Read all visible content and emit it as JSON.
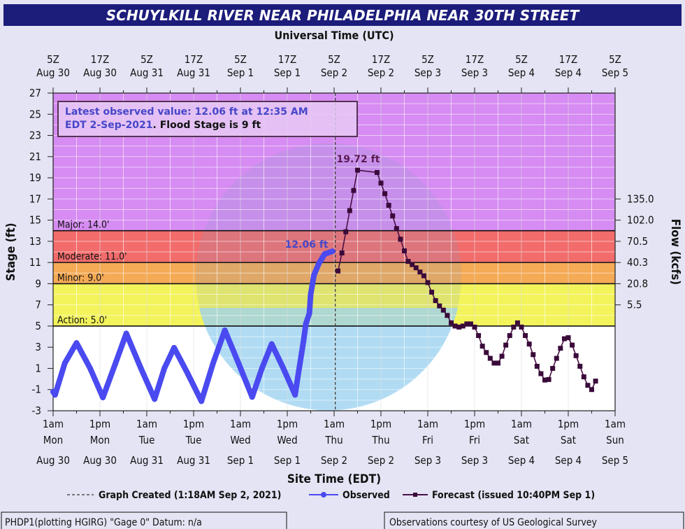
{
  "title": "SCHUYLKILL RIVER NEAR PHILADELPHIA NEAR 30TH STREET",
  "colors": {
    "title_bar": "#1c1c7a",
    "background": "#e4e4f4",
    "major": "#d68cf2",
    "moderate": "#f26c6c",
    "minor": "#f5aa55",
    "action": "#f3f35c",
    "normal": "#ffffff",
    "observed": "#4a4af0",
    "forecast": "#4a0f45"
  },
  "info_box": {
    "line1": "Latest observed value: 12.06 ft at 12:35 AM",
    "line2_blue": "EDT 2-Sep-2021",
    "line2_black": ". Flood Stage is 9 ft"
  },
  "footer": {
    "left": "PHDP1(plotting HGIRG) \"Gage 0\" Datum: n/a",
    "right": "Observations courtesy of US Geological Survey"
  },
  "legend": {
    "created": "Graph Created (1:18AM Sep 2, 2021)",
    "observed": "Observed",
    "forecast": "Forecast (issued 10:40PM Sep 1)"
  },
  "chart_data": {
    "type": "line",
    "top_axis_title": "Universal Time (UTC)",
    "xlabel": "Site Time (EDT)",
    "ylabel": "Stage (ft)",
    "y2label": "Flow (kcfs)",
    "xlim": [
      "2021-08-30T01:00",
      "2021-09-05T01:00"
    ],
    "ylim": [
      -3,
      27
    ],
    "grid": true,
    "legend_position": "bottom",
    "y_ticks": [
      "-3",
      "-1",
      "1",
      "3",
      "5",
      "7",
      "9",
      "11",
      "13",
      "15",
      "17",
      "19",
      "21",
      "23",
      "25",
      "27"
    ],
    "x_ticks_bottom": [
      {
        "time": "1am",
        "day": "Mon",
        "date": "Aug 30"
      },
      {
        "time": "1pm",
        "day": "Mon",
        "date": "Aug 30"
      },
      {
        "time": "1am",
        "day": "Tue",
        "date": "Aug 31"
      },
      {
        "time": "1pm",
        "day": "Tue",
        "date": "Aug 31"
      },
      {
        "time": "1am",
        "day": "Wed",
        "date": "Sep 1"
      },
      {
        "time": "1pm",
        "day": "Wed",
        "date": "Sep 1"
      },
      {
        "time": "1am",
        "day": "Thu",
        "date": "Sep 2"
      },
      {
        "time": "1pm",
        "day": "Thu",
        "date": "Sep 2"
      },
      {
        "time": "1am",
        "day": "Fri",
        "date": "Sep 3"
      },
      {
        "time": "1pm",
        "day": "Fri",
        "date": "Sep 3"
      },
      {
        "time": "1am",
        "day": "Sat",
        "date": "Sep 4"
      },
      {
        "time": "1pm",
        "day": "Sat",
        "date": "Sep 4"
      },
      {
        "time": "1am",
        "day": "Sun",
        "date": "Sep 5"
      }
    ],
    "x_ticks_top": [
      {
        "z": "5Z",
        "date": "Aug 30"
      },
      {
        "z": "17Z",
        "date": "Aug 30"
      },
      {
        "z": "5Z",
        "date": "Aug 31"
      },
      {
        "z": "17Z",
        "date": "Aug 31"
      },
      {
        "z": "5Z",
        "date": "Sep 1"
      },
      {
        "z": "17Z",
        "date": "Sep 1"
      },
      {
        "z": "5Z",
        "date": "Sep 2"
      },
      {
        "z": "17Z",
        "date": "Sep 2"
      },
      {
        "z": "5Z",
        "date": "Sep 3"
      },
      {
        "z": "17Z",
        "date": "Sep 3"
      },
      {
        "z": "5Z",
        "date": "Sep 4"
      },
      {
        "z": "17Z",
        "date": "Sep 4"
      },
      {
        "z": "5Z",
        "date": "Sep 5"
      }
    ],
    "flow_ticks": [
      {
        "stage": 17,
        "label": "135.0"
      },
      {
        "stage": 15,
        "label": "102.0"
      },
      {
        "stage": 13,
        "label": "70.5"
      },
      {
        "stage": 11,
        "label": "40.3"
      },
      {
        "stage": 9,
        "label": "20.8"
      },
      {
        "stage": 7,
        "label": "5.5"
      }
    ],
    "flood_categories": [
      {
        "name": "Major",
        "stage": 14.0,
        "label": "Major: 14.0'"
      },
      {
        "name": "Moderate",
        "stage": 11.0,
        "label": "Moderate: 11.0'"
      },
      {
        "name": "Minor",
        "stage": 9.0,
        "label": "Minor: 9.0'"
      },
      {
        "name": "Action",
        "stage": 5.0,
        "label": "Action: 5.0'"
      }
    ],
    "graph_created": "2021-09-02T01:18",
    "annotations": [
      {
        "text": "19.72 ft",
        "time": "2021-09-02T07:00",
        "stage": 19.72
      },
      {
        "text": "12.06 ft",
        "time": "2021-09-02T00:35",
        "stage": 12.06
      }
    ],
    "series": [
      {
        "name": "Observed",
        "points": [
          [
            "2021-08-30T01:00",
            -1.2
          ],
          [
            "2021-08-30T01:30",
            -1.5
          ],
          [
            "2021-08-30T04:00",
            1.5
          ],
          [
            "2021-08-30T07:00",
            3.4
          ],
          [
            "2021-08-30T10:30",
            1.0
          ],
          [
            "2021-08-30T13:45",
            -1.75
          ],
          [
            "2021-08-30T17:00",
            1.5
          ],
          [
            "2021-08-30T19:45",
            4.3
          ],
          [
            "2021-08-30T23:30",
            1.0
          ],
          [
            "2021-08-31T03:00",
            -1.9
          ],
          [
            "2021-08-31T05:30",
            1.0
          ],
          [
            "2021-08-31T08:00",
            2.95
          ],
          [
            "2021-08-31T11:30",
            0.5
          ],
          [
            "2021-08-31T15:00",
            -2.1
          ],
          [
            "2021-08-31T18:00",
            1.5
          ],
          [
            "2021-08-31T21:00",
            4.6
          ],
          [
            "2021-09-01T00:30",
            1.5
          ],
          [
            "2021-09-01T04:00",
            -1.7
          ],
          [
            "2021-09-01T06:30",
            1.0
          ],
          [
            "2021-09-01T09:00",
            3.3
          ],
          [
            "2021-09-01T12:00",
            1.0
          ],
          [
            "2021-09-01T15:00",
            -1.5
          ],
          [
            "2021-09-01T15:45",
            0.3
          ],
          [
            "2021-09-01T17:10",
            3.6
          ],
          [
            "2021-09-01T17:45",
            5.2
          ],
          [
            "2021-09-01T18:40",
            6.2
          ],
          [
            "2021-09-01T19:00",
            8.0
          ],
          [
            "2021-09-01T19:50",
            9.8
          ],
          [
            "2021-09-01T21:05",
            10.9
          ],
          [
            "2021-09-01T22:35",
            11.8
          ],
          [
            "2021-09-02T00:35",
            12.06
          ]
        ]
      },
      {
        "name": "Forecast",
        "points": [
          [
            "2021-09-02T02:00",
            10.2
          ],
          [
            "2021-09-02T03:00",
            11.9
          ],
          [
            "2021-09-02T04:00",
            13.9
          ],
          [
            "2021-09-02T05:00",
            15.9
          ],
          [
            "2021-09-02T06:00",
            17.8
          ],
          [
            "2021-09-02T07:00",
            19.72
          ],
          [
            "2021-09-02T12:00",
            19.5
          ],
          [
            "2021-09-02T13:00",
            18.5
          ],
          [
            "2021-09-02T14:00",
            17.5
          ],
          [
            "2021-09-02T15:00",
            16.4
          ],
          [
            "2021-09-02T16:00",
            15.4
          ],
          [
            "2021-09-02T17:00",
            14.2
          ],
          [
            "2021-09-02T18:00",
            13.2
          ],
          [
            "2021-09-02T19:00",
            12.1
          ],
          [
            "2021-09-02T20:00",
            11.1
          ],
          [
            "2021-09-02T21:00",
            10.8
          ],
          [
            "2021-09-02T22:00",
            10.5
          ],
          [
            "2021-09-02T23:00",
            10.1
          ],
          [
            "2021-09-03T00:00",
            9.75
          ],
          [
            "2021-09-03T01:00",
            9.1
          ],
          [
            "2021-09-03T02:00",
            8.2
          ],
          [
            "2021-09-03T03:00",
            7.4
          ],
          [
            "2021-09-03T04:00",
            6.9
          ],
          [
            "2021-09-03T05:00",
            6.5
          ],
          [
            "2021-09-03T06:00",
            6.0
          ],
          [
            "2021-09-03T07:00",
            5.3
          ],
          [
            "2021-09-03T08:00",
            5.0
          ],
          [
            "2021-09-03T09:00",
            4.9
          ],
          [
            "2021-09-03T10:00",
            5.0
          ],
          [
            "2021-09-03T11:00",
            5.2
          ],
          [
            "2021-09-03T12:00",
            5.2
          ],
          [
            "2021-09-03T13:00",
            4.9
          ],
          [
            "2021-09-03T14:00",
            4.1
          ],
          [
            "2021-09-03T15:00",
            3.1
          ],
          [
            "2021-09-03T16:00",
            2.5
          ],
          [
            "2021-09-03T17:00",
            1.95
          ],
          [
            "2021-09-03T18:00",
            1.5
          ],
          [
            "2021-09-03T19:00",
            1.5
          ],
          [
            "2021-09-03T20:00",
            2.15
          ],
          [
            "2021-09-03T21:00",
            3.2
          ],
          [
            "2021-09-03T22:00",
            4.1
          ],
          [
            "2021-09-03T23:00",
            4.9
          ],
          [
            "2021-09-04T00:00",
            5.3
          ],
          [
            "2021-09-04T01:00",
            4.9
          ],
          [
            "2021-09-04T02:00",
            4.1
          ],
          [
            "2021-09-04T03:00",
            3.3
          ],
          [
            "2021-09-04T04:00",
            2.3
          ],
          [
            "2021-09-04T05:00",
            1.2
          ],
          [
            "2021-09-04T06:00",
            0.5
          ],
          [
            "2021-09-04T07:00",
            -0.1
          ],
          [
            "2021-09-04T08:00",
            -0.05
          ],
          [
            "2021-09-04T09:00",
            1.0
          ],
          [
            "2021-09-04T10:00",
            1.95
          ],
          [
            "2021-09-04T11:00",
            2.9
          ],
          [
            "2021-09-04T12:00",
            3.8
          ],
          [
            "2021-09-04T13:00",
            3.9
          ],
          [
            "2021-09-04T14:00",
            3.2
          ],
          [
            "2021-09-04T15:00",
            2.2
          ],
          [
            "2021-09-04T16:00",
            1.2
          ],
          [
            "2021-09-04T17:00",
            0.2
          ],
          [
            "2021-09-04T18:00",
            -0.6
          ],
          [
            "2021-09-04T19:00",
            -1.0
          ],
          [
            "2021-09-04T20:00",
            -0.2
          ]
        ]
      }
    ]
  }
}
